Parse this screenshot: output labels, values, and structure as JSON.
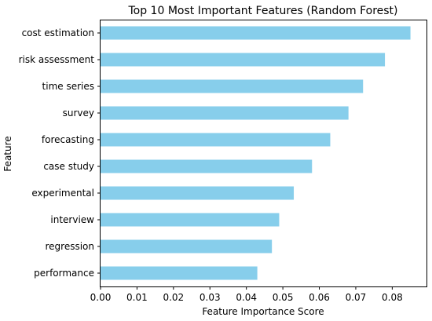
{
  "chart_data": {
    "type": "bar",
    "orientation": "horizontal",
    "title": "Top 10 Most Important Features (Random Forest)",
    "xlabel": "Feature Importance Score",
    "ylabel": "Feature",
    "categories": [
      "cost estimation",
      "risk assessment",
      "time series",
      "survey",
      "forecasting",
      "case study",
      "experimental",
      "interview",
      "regression",
      "performance"
    ],
    "values": [
      0.085,
      0.078,
      0.072,
      0.068,
      0.063,
      0.058,
      0.053,
      0.049,
      0.047,
      0.043
    ],
    "xlim": [
      0,
      0.0894
    ],
    "xticks": [
      "0.00",
      "0.01",
      "0.02",
      "0.03",
      "0.04",
      "0.05",
      "0.06",
      "0.07",
      "0.08"
    ],
    "grid": false,
    "legend": "none",
    "bar_color": "#87ceeb"
  }
}
